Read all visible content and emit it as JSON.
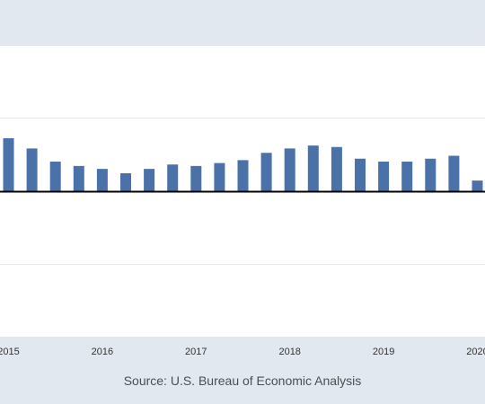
{
  "source_text": "Source: U.S. Bureau of Economic Analysis",
  "colors": {
    "background": "#e1e8ef",
    "plot_background": "#ffffff",
    "bar": "#4a72a8",
    "gridline": "#e6e6e6",
    "zero_line": "#000000",
    "tick_label": "#333333"
  },
  "chart_data": {
    "type": "bar",
    "title": "",
    "xlabel": "",
    "ylabel": "",
    "grid": true,
    "x_tick_labels": [
      "2015",
      "2016",
      "2017",
      "2018",
      "2019",
      "2020"
    ],
    "categories": [
      "2015-Q1",
      "2015-Q2",
      "2015-Q3",
      "2015-Q4",
      "2016-Q1",
      "2016-Q2",
      "2016-Q3",
      "2016-Q4",
      "2017-Q1",
      "2017-Q2",
      "2017-Q3",
      "2017-Q4",
      "2018-Q1",
      "2018-Q2",
      "2018-Q3",
      "2018-Q4",
      "2019-Q1",
      "2019-Q2",
      "2019-Q3",
      "2019-Q4",
      "2020-Q1"
    ],
    "values": [
      3.6,
      2.9,
      2.0,
      1.7,
      1.5,
      1.2,
      1.5,
      1.8,
      1.7,
      1.9,
      2.1,
      2.6,
      2.9,
      3.1,
      3.0,
      2.2,
      2.0,
      2.0,
      2.2,
      2.4,
      0.7
    ],
    "ylim": [
      -10,
      10
    ],
    "y_gridlines": [
      -10,
      -5,
      0,
      5,
      10
    ]
  }
}
